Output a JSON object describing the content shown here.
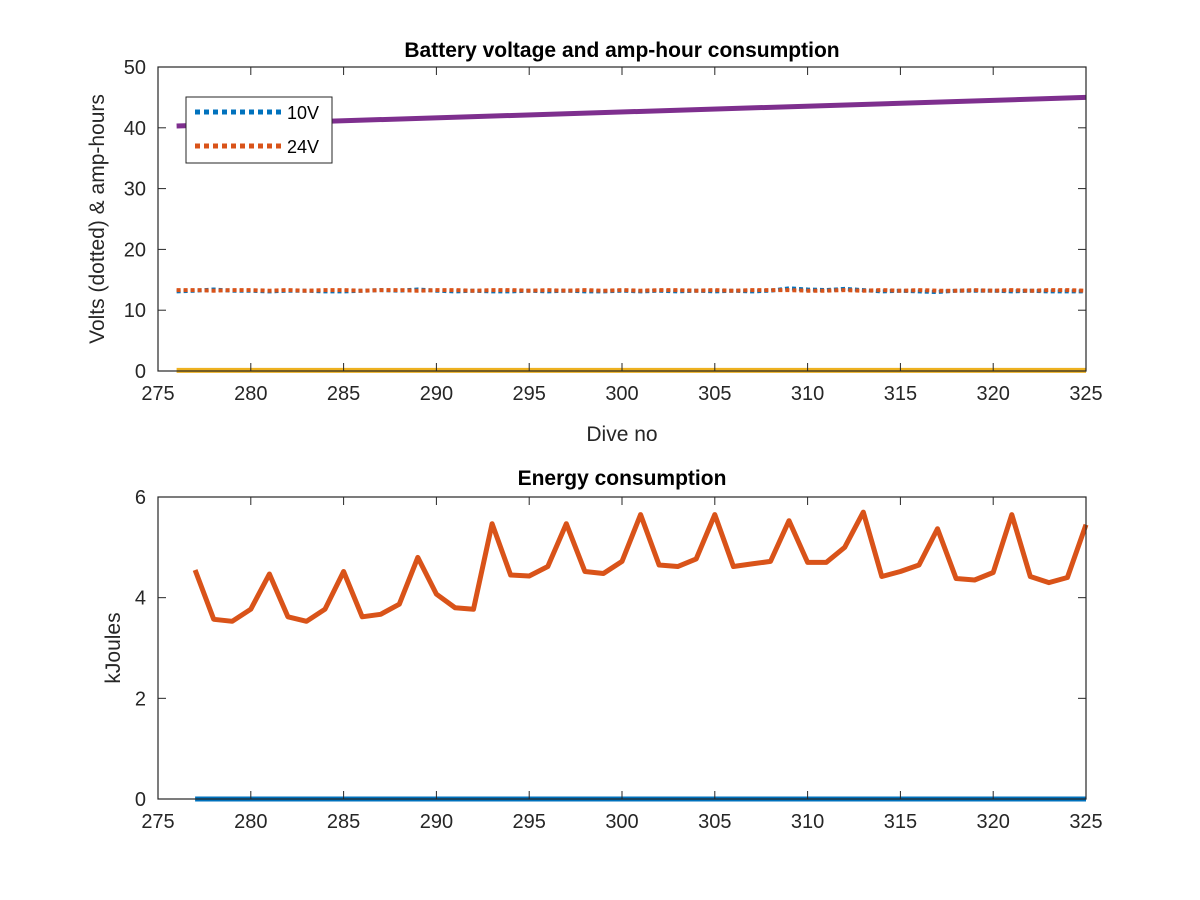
{
  "figure": {
    "background": "#ffffff"
  },
  "chart_data": [
    {
      "type": "line",
      "title": "Battery voltage and amp-hour consumption",
      "xlabel": "Dive no",
      "ylabel": "Volts (dotted) & amp-hours",
      "xlim": [
        275,
        325
      ],
      "ylim": [
        0,
        50
      ],
      "xticks": [
        275,
        280,
        285,
        290,
        295,
        300,
        305,
        310,
        315,
        320,
        325
      ],
      "yticks": [
        0,
        10,
        20,
        30,
        40,
        50
      ],
      "grid": false,
      "legend": {
        "position": "top-left",
        "entries": [
          "10V",
          "24V"
        ]
      },
      "series": [
        {
          "name": "10V",
          "style": "dotted",
          "color": "#0072BD",
          "x": [
            276,
            277,
            278,
            279,
            280,
            281,
            282,
            283,
            284,
            285,
            286,
            287,
            288,
            289,
            290,
            291,
            292,
            293,
            294,
            295,
            296,
            297,
            298,
            299,
            300,
            301,
            302,
            303,
            304,
            305,
            306,
            307,
            308,
            309,
            310,
            311,
            312,
            313,
            314,
            315,
            316,
            317,
            318,
            319,
            320,
            321,
            322,
            323,
            324,
            325
          ],
          "y": [
            13.1,
            13.2,
            13.4,
            13.2,
            13.2,
            13.1,
            13.2,
            13.2,
            13.1,
            13.1,
            13.2,
            13.3,
            13.2,
            13.4,
            13.2,
            13.1,
            13.2,
            13.1,
            13.1,
            13.2,
            13.1,
            13.2,
            13.1,
            13.1,
            13.2,
            13.1,
            13.2,
            13.1,
            13.2,
            13.1,
            13.2,
            13.1,
            13.2,
            13.6,
            13.4,
            13.3,
            13.5,
            13.3,
            13.1,
            13.2,
            13.1,
            13.0,
            13.2,
            13.2,
            13.2,
            13.1,
            13.2,
            13.1,
            13.1,
            13.1
          ]
        },
        {
          "name": "24V",
          "style": "dotted",
          "color": "#D95319",
          "x": [
            276,
            277,
            278,
            279,
            280,
            281,
            282,
            283,
            284,
            285,
            286,
            287,
            288,
            289,
            290,
            291,
            292,
            293,
            294,
            295,
            296,
            297,
            298,
            299,
            300,
            301,
            302,
            303,
            304,
            305,
            306,
            307,
            308,
            309,
            310,
            311,
            312,
            313,
            314,
            315,
            316,
            317,
            318,
            319,
            320,
            321,
            322,
            323,
            324,
            325
          ],
          "y": [
            13.3,
            13.3,
            13.2,
            13.3,
            13.3,
            13.2,
            13.3,
            13.2,
            13.3,
            13.3,
            13.2,
            13.3,
            13.3,
            13.2,
            13.3,
            13.3,
            13.2,
            13.3,
            13.3,
            13.2,
            13.3,
            13.2,
            13.3,
            13.2,
            13.3,
            13.2,
            13.3,
            13.3,
            13.2,
            13.3,
            13.2,
            13.3,
            13.3,
            13.3,
            13.2,
            13.2,
            13.3,
            13.2,
            13.3,
            13.2,
            13.3,
            13.2,
            13.2,
            13.3,
            13.2,
            13.3,
            13.2,
            13.3,
            13.3,
            13.2
          ]
        },
        {
          "style": "solid",
          "color": "#7E2F8E",
          "x": [
            276,
            325
          ],
          "y": [
            40.3,
            45.0
          ]
        },
        {
          "style": "solid",
          "color": "#EDB120",
          "x": [
            276,
            325
          ],
          "y": [
            0.1,
            0.1
          ]
        }
      ]
    },
    {
      "type": "line",
      "title": "Energy consumption",
      "xlabel": "",
      "ylabel": "kJoules",
      "xlim": [
        275,
        325
      ],
      "ylim": [
        0,
        6
      ],
      "xticks": [
        275,
        280,
        285,
        290,
        295,
        300,
        305,
        310,
        315,
        320,
        325
      ],
      "yticks": [
        0,
        2,
        4,
        6
      ],
      "grid": false,
      "series": [
        {
          "style": "solid",
          "color": "#D95319",
          "x": [
            277,
            278,
            279,
            280,
            281,
            282,
            283,
            284,
            285,
            286,
            287,
            288,
            289,
            290,
            291,
            292,
            293,
            294,
            295,
            296,
            297,
            298,
            299,
            300,
            301,
            302,
            303,
            304,
            305,
            306,
            307,
            308,
            309,
            310,
            311,
            312,
            313,
            314,
            315,
            316,
            317,
            318,
            319,
            320,
            321,
            322,
            323,
            324,
            325
          ],
          "y": [
            4.55,
            3.57,
            3.53,
            3.77,
            4.47,
            3.62,
            3.53,
            3.77,
            4.52,
            3.62,
            3.67,
            3.87,
            4.8,
            4.07,
            3.8,
            3.77,
            5.47,
            4.45,
            4.43,
            4.62,
            5.47,
            4.52,
            4.48,
            4.72,
            5.65,
            4.65,
            4.62,
            4.77,
            5.65,
            4.62,
            4.67,
            4.72,
            5.53,
            4.7,
            4.7,
            5.0,
            5.7,
            4.42,
            4.52,
            4.65,
            5.37,
            4.38,
            4.35,
            4.5,
            5.65,
            4.42,
            4.3,
            4.4,
            5.45
          ]
        },
        {
          "style": "solid",
          "color": "#0072BD",
          "x": [
            277,
            325
          ],
          "y": [
            0.0,
            0.0
          ]
        }
      ]
    }
  ]
}
